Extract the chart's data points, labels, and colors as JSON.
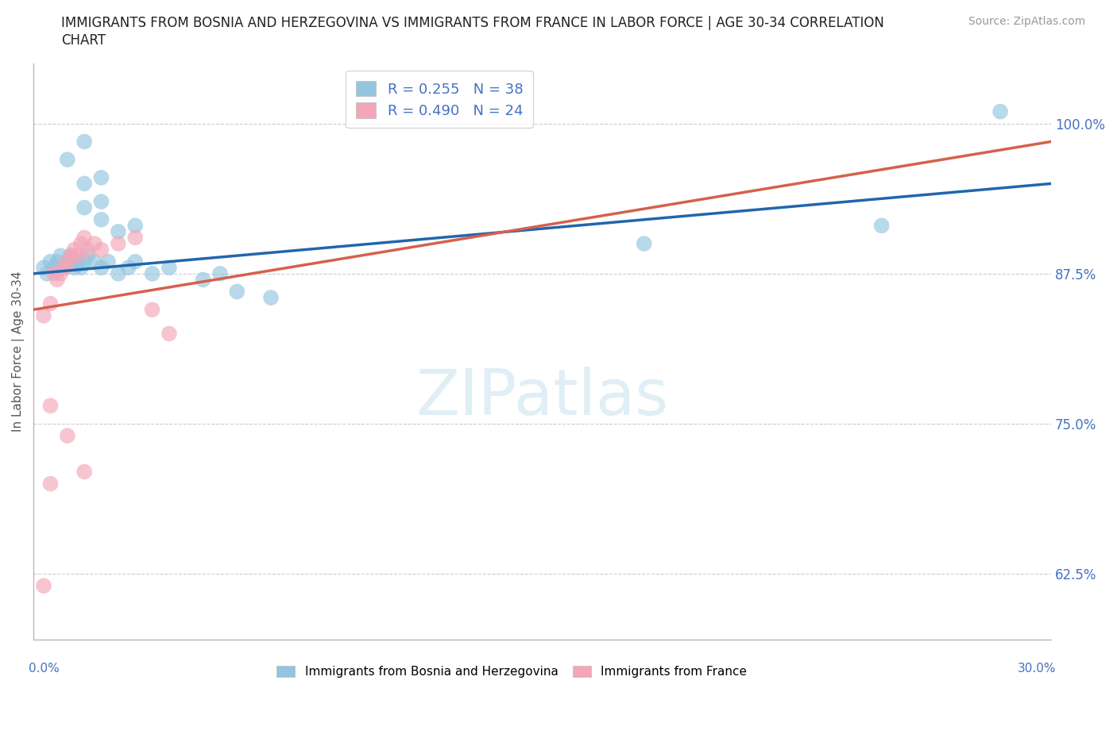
{
  "title_line1": "IMMIGRANTS FROM BOSNIA AND HERZEGOVINA VS IMMIGRANTS FROM FRANCE IN LABOR FORCE | AGE 30-34 CORRELATION",
  "title_line2": "CHART",
  "source_text": "Source: ZipAtlas.com",
  "ylabel": "In Labor Force | Age 30-34",
  "yticks": [
    62.5,
    75.0,
    87.5,
    100.0
  ],
  "ytick_labels": [
    "62.5%",
    "75.0%",
    "87.5%",
    "100.0%"
  ],
  "xlim": [
    0.0,
    30.0
  ],
  "ylim": [
    57.0,
    105.0
  ],
  "watermark": "ZIPatlas",
  "legend_bosnia_r": "0.255",
  "legend_bosnia_n": "38",
  "legend_france_r": "0.490",
  "legend_france_n": "24",
  "bosnia_color": "#92c5de",
  "france_color": "#f4a6b8",
  "bosnia_line_color": "#2166ac",
  "france_line_color": "#d6604d",
  "bosnia_dots": [
    [
      0.3,
      88.0
    ],
    [
      0.4,
      87.5
    ],
    [
      0.5,
      88.5
    ],
    [
      0.6,
      88.0
    ],
    [
      0.7,
      88.5
    ],
    [
      0.8,
      89.0
    ],
    [
      0.9,
      88.0
    ],
    [
      1.0,
      88.5
    ],
    [
      1.1,
      89.0
    ],
    [
      1.2,
      88.0
    ],
    [
      1.3,
      88.5
    ],
    [
      1.4,
      88.0
    ],
    [
      1.5,
      88.5
    ],
    [
      1.6,
      89.0
    ],
    [
      1.8,
      88.5
    ],
    [
      2.0,
      88.0
    ],
    [
      2.2,
      88.5
    ],
    [
      2.5,
      87.5
    ],
    [
      2.8,
      88.0
    ],
    [
      3.0,
      88.5
    ],
    [
      3.5,
      87.5
    ],
    [
      4.0,
      88.0
    ],
    [
      5.0,
      87.0
    ],
    [
      5.5,
      87.5
    ],
    [
      6.0,
      86.0
    ],
    [
      7.0,
      85.5
    ],
    [
      2.0,
      92.0
    ],
    [
      2.5,
      91.0
    ],
    [
      3.0,
      91.5
    ],
    [
      1.5,
      93.0
    ],
    [
      2.0,
      93.5
    ],
    [
      1.5,
      95.0
    ],
    [
      2.0,
      95.5
    ],
    [
      1.0,
      97.0
    ],
    [
      1.5,
      98.5
    ],
    [
      18.0,
      90.0
    ],
    [
      25.0,
      91.5
    ],
    [
      28.5,
      101.0
    ]
  ],
  "france_dots": [
    [
      0.3,
      84.0
    ],
    [
      0.5,
      85.0
    ],
    [
      0.6,
      87.5
    ],
    [
      0.7,
      87.0
    ],
    [
      0.8,
      87.5
    ],
    [
      0.9,
      88.0
    ],
    [
      1.0,
      88.5
    ],
    [
      1.1,
      89.0
    ],
    [
      1.2,
      89.5
    ],
    [
      1.3,
      89.0
    ],
    [
      1.4,
      90.0
    ],
    [
      1.5,
      90.5
    ],
    [
      1.6,
      89.5
    ],
    [
      1.8,
      90.0
    ],
    [
      2.0,
      89.5
    ],
    [
      2.5,
      90.0
    ],
    [
      3.0,
      90.5
    ],
    [
      3.5,
      84.5
    ],
    [
      4.0,
      82.5
    ],
    [
      0.5,
      76.5
    ],
    [
      1.0,
      74.0
    ],
    [
      1.5,
      71.0
    ],
    [
      0.5,
      70.0
    ],
    [
      0.3,
      61.5
    ]
  ],
  "bosnia_trend_x": [
    0.0,
    30.0
  ],
  "bosnia_trend_y": [
    87.5,
    95.0
  ],
  "france_trend_x": [
    0.0,
    30.0
  ],
  "france_trend_y": [
    84.5,
    98.5
  ]
}
